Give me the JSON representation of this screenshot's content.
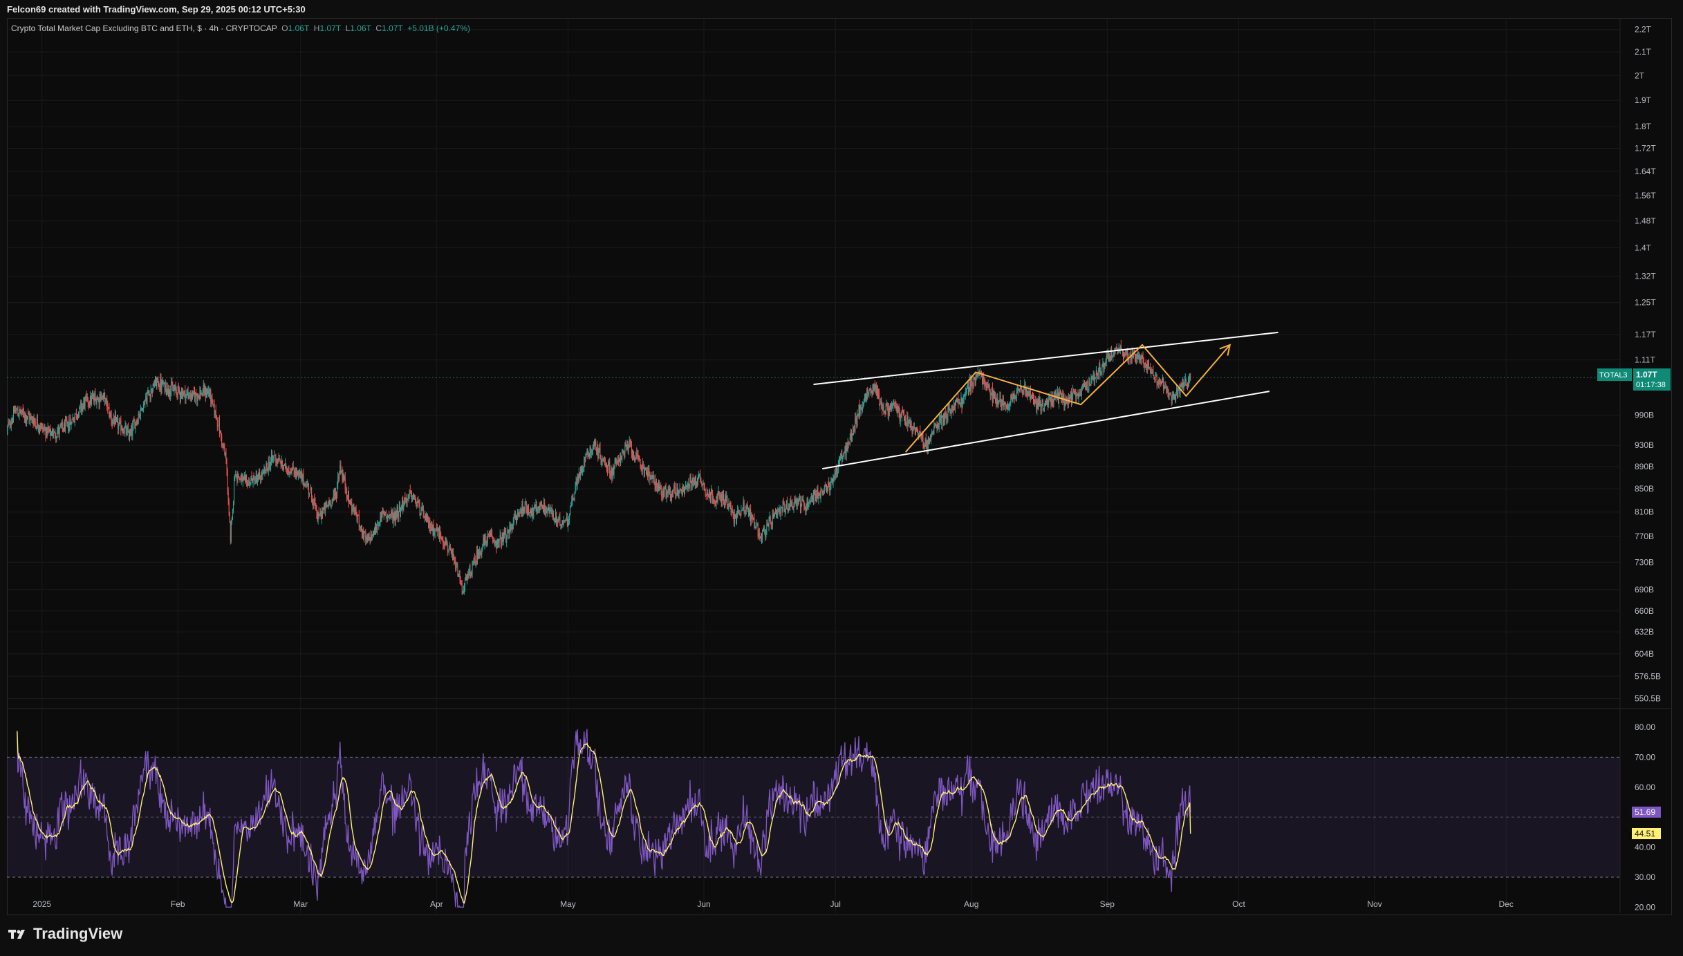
{
  "caption": "Felcon69 created with TradingView.com, Sep 29, 2025 00:12 UTC+5:30",
  "legend": {
    "title": "Crypto Total Market Cap Excluding BTC and ETH, $ · 4h · CRYPTOCAP",
    "o_label": "O",
    "o_value": "1.06T",
    "h_label": "H",
    "h_value": "1.07T",
    "l_label": "L",
    "l_value": "1.06T",
    "c_label": "C",
    "c_value": "1.07T",
    "change": "+5.01B (+0.47%)"
  },
  "price_tag": {
    "symbol": "TOTAL3",
    "value": "1.07T",
    "countdown": "01:17:38"
  },
  "rsi_tags": {
    "rsi": "51.69",
    "ma": "44.51"
  },
  "brand": "TradingView",
  "colors": {
    "background": "#0c0c0c",
    "up": "#26a69a",
    "down": "#ef5350",
    "rsi": "#7e57c2",
    "rsi_ma": "#fff176",
    "pattern": "#f5b041",
    "channel": "#ffffff",
    "price_tag": "#0f8a76"
  },
  "chart_data": {
    "type": "candlestick",
    "scale": "log",
    "y_ticks": [
      "2.2T",
      "2.1T",
      "2T",
      "1.9T",
      "1.8T",
      "1.72T",
      "1.64T",
      "1.56T",
      "1.48T",
      "1.4T",
      "1.32T",
      "1.25T",
      "1.17T",
      "1.11T",
      "990B",
      "930B",
      "890B",
      "850B",
      "810B",
      "770B",
      "730B",
      "690B",
      "660B",
      "632B",
      "604B",
      "576.5B",
      "550.5B"
    ],
    "y_tick_values": [
      2.2,
      2.1,
      2.0,
      1.9,
      1.8,
      1.72,
      1.64,
      1.56,
      1.48,
      1.4,
      1.32,
      1.25,
      1.17,
      1.11,
      0.99,
      0.93,
      0.89,
      0.85,
      0.81,
      0.77,
      0.73,
      0.69,
      0.66,
      0.632,
      0.604,
      0.5765,
      0.5505
    ],
    "x_ticks": [
      "2025",
      "Feb",
      "Mar",
      "Apr",
      "May",
      "Jun",
      "Jul",
      "Aug",
      "Sep",
      "Oct",
      "Nov",
      "Dec"
    ],
    "x_tick_days": [
      0,
      31,
      59,
      90,
      120,
      151,
      181,
      212,
      243,
      273,
      304,
      334
    ],
    "x_range_days": [
      -8,
      360
    ],
    "y_range": [
      0.54,
      2.25
    ],
    "current_price": 1.07,
    "price_path": [
      [
        -8,
        0.96
      ],
      [
        -6,
        1.0
      ],
      [
        -2,
        0.98
      ],
      [
        2,
        0.95
      ],
      [
        6,
        0.97
      ],
      [
        10,
        1.02
      ],
      [
        14,
        1.03
      ],
      [
        16,
        0.98
      ],
      [
        20,
        0.95
      ],
      [
        22,
        0.99
      ],
      [
        24,
        1.03
      ],
      [
        26,
        1.06
      ],
      [
        28,
        1.05
      ],
      [
        31,
        1.04
      ],
      [
        34,
        1.03
      ],
      [
        38,
        1.04
      ],
      [
        40,
        0.98
      ],
      [
        42,
        0.9
      ],
      [
        43,
        0.76
      ],
      [
        44,
        0.88
      ],
      [
        46,
        0.86
      ],
      [
        50,
        0.87
      ],
      [
        53,
        0.91
      ],
      [
        55,
        0.89
      ],
      [
        58,
        0.88
      ],
      [
        61,
        0.85
      ],
      [
        63,
        0.8
      ],
      [
        65,
        0.82
      ],
      [
        67,
        0.84
      ],
      [
        68,
        0.89
      ],
      [
        70,
        0.83
      ],
      [
        72,
        0.8
      ],
      [
        74,
        0.76
      ],
      [
        76,
        0.78
      ],
      [
        78,
        0.81
      ],
      [
        80,
        0.8
      ],
      [
        82,
        0.82
      ],
      [
        84,
        0.84
      ],
      [
        86,
        0.82
      ],
      [
        88,
        0.79
      ],
      [
        90,
        0.78
      ],
      [
        92,
        0.76
      ],
      [
        94,
        0.73
      ],
      [
        96,
        0.69
      ],
      [
        98,
        0.72
      ],
      [
        100,
        0.75
      ],
      [
        102,
        0.77
      ],
      [
        104,
        0.76
      ],
      [
        106,
        0.77
      ],
      [
        108,
        0.8
      ],
      [
        110,
        0.82
      ],
      [
        112,
        0.81
      ],
      [
        114,
        0.82
      ],
      [
        116,
        0.81
      ],
      [
        118,
        0.79
      ],
      [
        120,
        0.8
      ],
      [
        122,
        0.86
      ],
      [
        124,
        0.91
      ],
      [
        126,
        0.93
      ],
      [
        128,
        0.9
      ],
      [
        130,
        0.88
      ],
      [
        132,
        0.91
      ],
      [
        134,
        0.93
      ],
      [
        136,
        0.9
      ],
      [
        138,
        0.88
      ],
      [
        140,
        0.86
      ],
      [
        142,
        0.84
      ],
      [
        146,
        0.85
      ],
      [
        150,
        0.87
      ],
      [
        152,
        0.84
      ],
      [
        156,
        0.83
      ],
      [
        158,
        0.8
      ],
      [
        160,
        0.82
      ],
      [
        162,
        0.8
      ],
      [
        164,
        0.77
      ],
      [
        166,
        0.79
      ],
      [
        168,
        0.81
      ],
      [
        170,
        0.82
      ],
      [
        172,
        0.83
      ],
      [
        174,
        0.82
      ],
      [
        176,
        0.84
      ],
      [
        178,
        0.84
      ],
      [
        180,
        0.86
      ],
      [
        182,
        0.9
      ],
      [
        184,
        0.93
      ],
      [
        186,
        0.99
      ],
      [
        188,
        1.03
      ],
      [
        190,
        1.05
      ],
      [
        192,
        1.0
      ],
      [
        194,
        1.01
      ],
      [
        196,
        0.99
      ],
      [
        198,
        0.97
      ],
      [
        200,
        0.95
      ],
      [
        202,
        0.93
      ],
      [
        204,
        0.97
      ],
      [
        206,
        0.99
      ],
      [
        208,
        1.01
      ],
      [
        210,
        1.02
      ],
      [
        212,
        1.06
      ],
      [
        214,
        1.08
      ],
      [
        216,
        1.04
      ],
      [
        218,
        1.02
      ],
      [
        220,
        1.01
      ],
      [
        222,
        1.04
      ],
      [
        224,
        1.05
      ],
      [
        226,
        1.02
      ],
      [
        228,
        1.01
      ],
      [
        230,
        1.02
      ],
      [
        232,
        1.03
      ],
      [
        234,
        1.02
      ],
      [
        236,
        1.03
      ],
      [
        238,
        1.05
      ],
      [
        240,
        1.07
      ],
      [
        242,
        1.1
      ],
      [
        244,
        1.12
      ],
      [
        246,
        1.14
      ],
      [
        248,
        1.11
      ],
      [
        250,
        1.12
      ],
      [
        252,
        1.1
      ],
      [
        254,
        1.07
      ],
      [
        256,
        1.05
      ],
      [
        258,
        1.02
      ],
      [
        260,
        1.05
      ],
      [
        262,
        1.07
      ]
    ],
    "channel": {
      "upper": [
        [
          176,
          1.055
        ],
        [
          282,
          1.175
        ]
      ],
      "lower": [
        [
          178,
          0.886
        ],
        [
          280,
          1.04
        ]
      ]
    },
    "zigzag": [
      [
        197,
        0.917
      ],
      [
        213,
        1.082
      ],
      [
        237,
        1.012
      ],
      [
        251,
        1.145
      ],
      [
        261,
        1.03
      ],
      [
        271,
        1.145
      ]
    ],
    "rsi": {
      "y_ticks": [
        "80.00",
        "70.00",
        "60.00",
        "40.00",
        "30.00",
        "20.00"
      ],
      "y_tick_values": [
        80,
        70,
        60,
        40,
        30,
        20
      ],
      "band": [
        30,
        70
      ],
      "middle": 50,
      "y_range": [
        18,
        86
      ],
      "last_rsi": 51.69,
      "last_ma": 44.51
    }
  }
}
